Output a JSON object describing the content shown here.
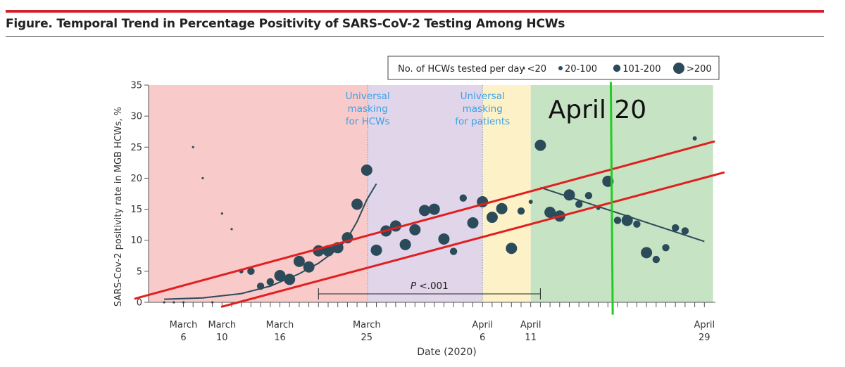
{
  "figure": {
    "title": "Figure. Temporal Trend in Percentage Positivity of SARS-CoV-2 Testing Among HCWs",
    "accent_color": "#d0202c"
  },
  "chart_data": {
    "type": "scatter",
    "title": "Figure. Temporal Trend in Percentage Positivity of SARS-CoV-2 Testing Among HCWs",
    "xlabel": "Date (2020)",
    "ylabel": "SARS-Cov-2 positivity rate in MGB HCWs, %",
    "xlim_day": [
      1,
      60
    ],
    "ylim": [
      0,
      35
    ],
    "yticks": [
      0,
      5,
      10,
      15,
      20,
      25,
      30,
      35
    ],
    "xtick_labels": [
      {
        "day": 6,
        "line1": "March",
        "line2": "6"
      },
      {
        "day": 10,
        "line1": "March",
        "line2": "10"
      },
      {
        "day": 16,
        "line1": "March",
        "line2": "16"
      },
      {
        "day": 25,
        "line1": "March",
        "line2": "25"
      },
      {
        "day": 37,
        "line1": "April",
        "line2": "6"
      },
      {
        "day": 42,
        "line1": "April",
        "line2": "11"
      },
      {
        "day": 60,
        "line1": "April",
        "line2": "29"
      }
    ],
    "day_note": "day 1 = March 1, 2020",
    "legend": {
      "title": "No. of HCWs tested per day",
      "entries": [
        {
          "label": "<20",
          "size": 1
        },
        {
          "label": "20-100",
          "size": 2
        },
        {
          "label": "101-200",
          "size": 3
        },
        {
          "label": ">200",
          "size": 4
        }
      ]
    },
    "regions": [
      {
        "from": 1,
        "to": 25.1,
        "color": "#f8caca",
        "label": ""
      },
      {
        "from": 25.1,
        "to": 37,
        "color": "#e1d5ea",
        "label": "Universal masking for HCWs"
      },
      {
        "from": 37,
        "to": 42,
        "color": "#fdf1c8",
        "label": "Universal masking for patients"
      },
      {
        "from": 42,
        "to": 60.9,
        "color": "#c6e3c3",
        "label": ""
      }
    ],
    "region_label_lines": [
      [
        "Universal",
        "masking",
        "for HCWs"
      ],
      [
        "Universal",
        "masking",
        "for patients"
      ]
    ],
    "annotation_text": "April 20",
    "annotation_day": 50.3,
    "pvalue": {
      "prefix": "P",
      "text": "<.001",
      "from": 20,
      "to": 43,
      "y": 1.8
    },
    "points": [
      {
        "day": 4,
        "y": 0,
        "size": 1
      },
      {
        "day": 5,
        "y": 0,
        "size": 1
      },
      {
        "day": 6,
        "y": 0,
        "size": 1
      },
      {
        "day": 7,
        "y": 25,
        "size": 1
      },
      {
        "day": 8,
        "y": 20,
        "size": 1
      },
      {
        "day": 9,
        "y": 0,
        "size": 1
      },
      {
        "day": 10,
        "y": 14.3,
        "size": 1
      },
      {
        "day": 11,
        "y": 11.8,
        "size": 1
      },
      {
        "day": 12,
        "y": 5,
        "size": 2
      },
      {
        "day": 13,
        "y": 5,
        "size": 3
      },
      {
        "day": 14,
        "y": 2.6,
        "size": 3
      },
      {
        "day": 15,
        "y": 3.3,
        "size": 3
      },
      {
        "day": 16,
        "y": 4.3,
        "size": 4
      },
      {
        "day": 17,
        "y": 3.7,
        "size": 4
      },
      {
        "day": 18,
        "y": 6.6,
        "size": 4
      },
      {
        "day": 19,
        "y": 5.7,
        "size": 4
      },
      {
        "day": 20,
        "y": 8.3,
        "size": 4
      },
      {
        "day": 21,
        "y": 8.3,
        "size": 4
      },
      {
        "day": 22,
        "y": 8.8,
        "size": 4
      },
      {
        "day": 23,
        "y": 10.4,
        "size": 4
      },
      {
        "day": 24,
        "y": 15.8,
        "size": 4
      },
      {
        "day": 25,
        "y": 21.3,
        "size": 4
      },
      {
        "day": 26,
        "y": 8.4,
        "size": 4
      },
      {
        "day": 27,
        "y": 11.5,
        "size": 4
      },
      {
        "day": 28,
        "y": 12.3,
        "size": 4
      },
      {
        "day": 29,
        "y": 9.3,
        "size": 4
      },
      {
        "day": 30,
        "y": 11.7,
        "size": 4
      },
      {
        "day": 31,
        "y": 14.8,
        "size": 4
      },
      {
        "day": 32,
        "y": 15,
        "size": 4
      },
      {
        "day": 33,
        "y": 10.2,
        "size": 4
      },
      {
        "day": 34,
        "y": 8.2,
        "size": 3
      },
      {
        "day": 35,
        "y": 16.8,
        "size": 3
      },
      {
        "day": 36,
        "y": 12.8,
        "size": 4
      },
      {
        "day": 37,
        "y": 16.2,
        "size": 4
      },
      {
        "day": 38,
        "y": 13.7,
        "size": 4
      },
      {
        "day": 39,
        "y": 15.1,
        "size": 4
      },
      {
        "day": 40,
        "y": 8.7,
        "size": 4
      },
      {
        "day": 41,
        "y": 14.7,
        "size": 3
      },
      {
        "day": 42,
        "y": 16.2,
        "size": 2
      },
      {
        "day": 43,
        "y": 25.3,
        "size": 4
      },
      {
        "day": 44,
        "y": 14.5,
        "size": 4
      },
      {
        "day": 45,
        "y": 13.9,
        "size": 4
      },
      {
        "day": 46,
        "y": 17.3,
        "size": 4
      },
      {
        "day": 47,
        "y": 15.8,
        "size": 3
      },
      {
        "day": 48,
        "y": 17.2,
        "size": 3
      },
      {
        "day": 49,
        "y": 15.2,
        "size": 2
      },
      {
        "day": 50,
        "y": 19.5,
        "size": 4
      },
      {
        "day": 51,
        "y": 13.2,
        "size": 3
      },
      {
        "day": 52,
        "y": 13.2,
        "size": 4
      },
      {
        "day": 53,
        "y": 12.6,
        "size": 3
      },
      {
        "day": 54,
        "y": 8,
        "size": 4
      },
      {
        "day": 55,
        "y": 6.9,
        "size": 3
      },
      {
        "day": 56,
        "y": 8.8,
        "size": 3
      },
      {
        "day": 57,
        "y": 12,
        "size": 3
      },
      {
        "day": 58,
        "y": 11.5,
        "size": 3
      },
      {
        "day": 59,
        "y": 26.4,
        "size": 2
      }
    ],
    "trend_fit_early": [
      [
        4,
        0.5
      ],
      [
        8,
        0.7
      ],
      [
        12,
        1.4
      ],
      [
        15,
        2.6
      ],
      [
        18,
        4.6
      ],
      [
        20,
        6.3
      ],
      [
        22,
        8.6
      ],
      [
        23,
        10.3
      ],
      [
        24,
        13.0
      ],
      [
        25,
        16.5
      ],
      [
        26,
        19.1
      ]
    ],
    "trend_fit_late": [
      [
        43,
        18.5
      ],
      [
        60,
        9.8
      ]
    ],
    "red_lines": [
      [
        [
          1,
          0.6
        ],
        [
          61,
          25.9
        ]
      ],
      [
        [
          10,
          -0.7
        ],
        [
          62,
          20.9
        ]
      ]
    ],
    "green_line": [
      [
        50.3,
        35.5
      ],
      [
        50.5,
        -2.0
      ]
    ],
    "colors": {
      "marker": "#2b4b5a",
      "red_line": "#e02020",
      "green_line": "#22cc22",
      "region_label": "#3aa0e8",
      "annotation": "#111111"
    }
  }
}
